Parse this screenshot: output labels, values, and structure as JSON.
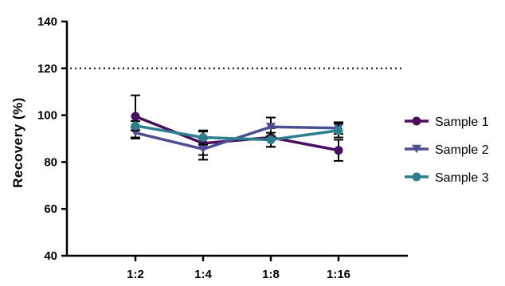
{
  "chart_data": {
    "type": "line",
    "categories": [
      "1:2",
      "1:4",
      "1:8",
      "1:16"
    ],
    "ylabel": "Recovery (%)",
    "xlabel": "",
    "ylim": [
      40,
      140
    ],
    "yticks": [
      40,
      60,
      80,
      100,
      120,
      140
    ],
    "reference_line": {
      "y": 120,
      "style": "dotted"
    },
    "legend_position": "right",
    "series": [
      {
        "name": "Sample 1",
        "color": "#4b0d5e",
        "marker": "circle",
        "values": [
          99.5,
          88,
          90.5,
          85
        ],
        "errors": [
          9,
          5,
          4,
          4.5
        ]
      },
      {
        "name": "Sample 2",
        "color": "#4d4d96",
        "marker": "triangle-down",
        "values": [
          92.5,
          85.5,
          95,
          94.5
        ],
        "errors": [
          2.5,
          4.5,
          4,
          2.5
        ]
      },
      {
        "name": "Sample 3",
        "color": "#2c7f8c",
        "marker": "circle",
        "values": [
          95.5,
          90.5,
          89.5,
          93.5
        ],
        "errors": [
          2,
          3,
          3,
          3
        ]
      }
    ]
  }
}
